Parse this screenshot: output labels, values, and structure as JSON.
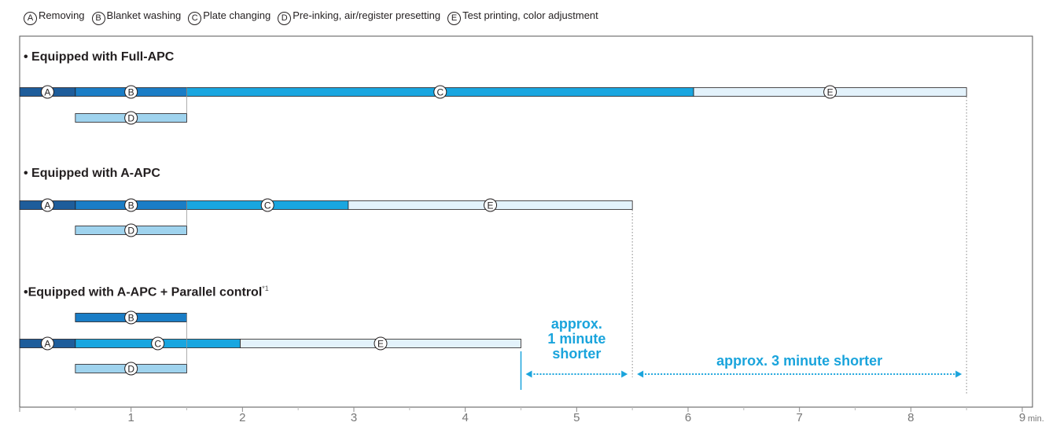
{
  "legend": [
    {
      "letter": "A",
      "label": "Removing"
    },
    {
      "letter": "B",
      "label": "Blanket washing"
    },
    {
      "letter": "C",
      "label": "Plate changing"
    },
    {
      "letter": "D",
      "label": "Pre-inking, air/register presetting"
    },
    {
      "letter": "E",
      "label": "Test printing, color adjustment"
    }
  ],
  "colors": {
    "A": "#1e5d9b",
    "B": "#1a7dc6",
    "C": "#19a6e0",
    "D": "#9fd3ee",
    "E": "#e3f2fb",
    "annotation": "#1aa4dc",
    "axis": "#888888"
  },
  "chart_data": {
    "type": "gantt",
    "xunit": "min.",
    "xlim": [
      0,
      9
    ],
    "ticks": [
      1,
      2,
      3,
      4,
      5,
      6,
      7,
      8,
      9
    ],
    "groups": [
      {
        "title": "• Equipped with Full-APC",
        "rows": [
          [
            {
              "label": "A",
              "start": 0,
              "end": 0.5
            },
            {
              "label": "B",
              "start": 0.5,
              "end": 1.5
            },
            {
              "label": "C",
              "start": 1.5,
              "end": 6.05
            },
            {
              "label": "E",
              "start": 6.05,
              "end": 8.5
            }
          ],
          [
            {
              "label": "D",
              "start": 0.5,
              "end": 1.5
            }
          ]
        ]
      },
      {
        "title": "• Equipped with A-APC",
        "rows": [
          [
            {
              "label": "A",
              "start": 0,
              "end": 0.5
            },
            {
              "label": "B",
              "start": 0.5,
              "end": 1.5
            },
            {
              "label": "C",
              "start": 1.5,
              "end": 2.95
            },
            {
              "label": "E",
              "start": 2.95,
              "end": 5.5
            }
          ],
          [
            {
              "label": "D",
              "start": 0.5,
              "end": 1.5
            }
          ]
        ]
      },
      {
        "title": "•Equipped with A-APC + Parallel control",
        "footnote": "*1",
        "rows": [
          [
            {
              "label": "B",
              "start": 0.5,
              "end": 1.5
            }
          ],
          [
            {
              "label": "A",
              "start": 0,
              "end": 0.5
            },
            {
              "label": "C",
              "start": 0.5,
              "end": 1.98
            },
            {
              "label": "E",
              "start": 1.98,
              "end": 4.5
            }
          ],
          [
            {
              "label": "D",
              "start": 0.5,
              "end": 1.5
            }
          ]
        ]
      }
    ],
    "annotations": [
      {
        "text": "approx.\n1 minute\nshorter",
        "from": 4.5,
        "to": 5.5
      },
      {
        "text": "approx. 3 minute shorter",
        "from": 5.5,
        "to": 8.5
      }
    ]
  }
}
